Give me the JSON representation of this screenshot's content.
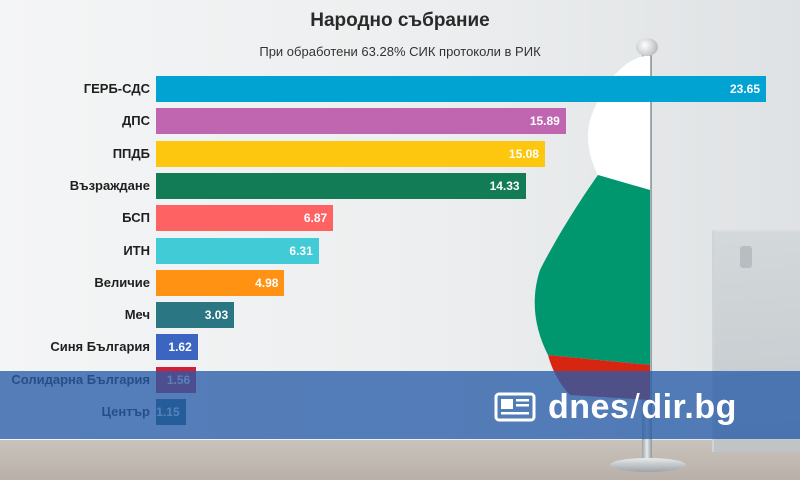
{
  "colors": {
    "banner": "#285ca8",
    "flag_white": "#ffffff",
    "flag_green": "#00966e",
    "flag_red": "#d62612"
  },
  "logo": {
    "icon": "newspaper-icon",
    "part1": "dnes",
    "slash": "/",
    "part2": "dir.bg"
  },
  "chart_data": {
    "type": "bar",
    "orientation": "horizontal",
    "title": "Народно събрание",
    "subtitle": "При обработени 63.28% СИК протоколи в РИК",
    "categories": [
      "ГЕРБ-СДС",
      "ДПС",
      "ППДБ",
      "Възраждане",
      "БСП",
      "ИТН",
      "Величие",
      "Меч",
      "Синя България",
      "Солидарна България",
      "Център"
    ],
    "values": [
      23.65,
      15.89,
      15.08,
      14.33,
      6.87,
      6.31,
      4.98,
      3.03,
      1.62,
      1.56,
      1.15
    ],
    "value_labels": [
      "23.65",
      "15.89",
      "15.08",
      "14.33",
      "6.87",
      "6.31",
      "4.98",
      "3.03",
      "1.62",
      "1.56",
      "1.15"
    ],
    "colors": [
      "#00a3d1",
      "#c065b0",
      "#fec70f",
      "#117c55",
      "#fe6263",
      "#40cbd7",
      "#ff9212",
      "#2a7682",
      "#3b65c1",
      "#d11f38",
      "#1f5f70"
    ],
    "xlim": [
      0,
      23.65
    ],
    "grid": false,
    "legend": "none"
  }
}
